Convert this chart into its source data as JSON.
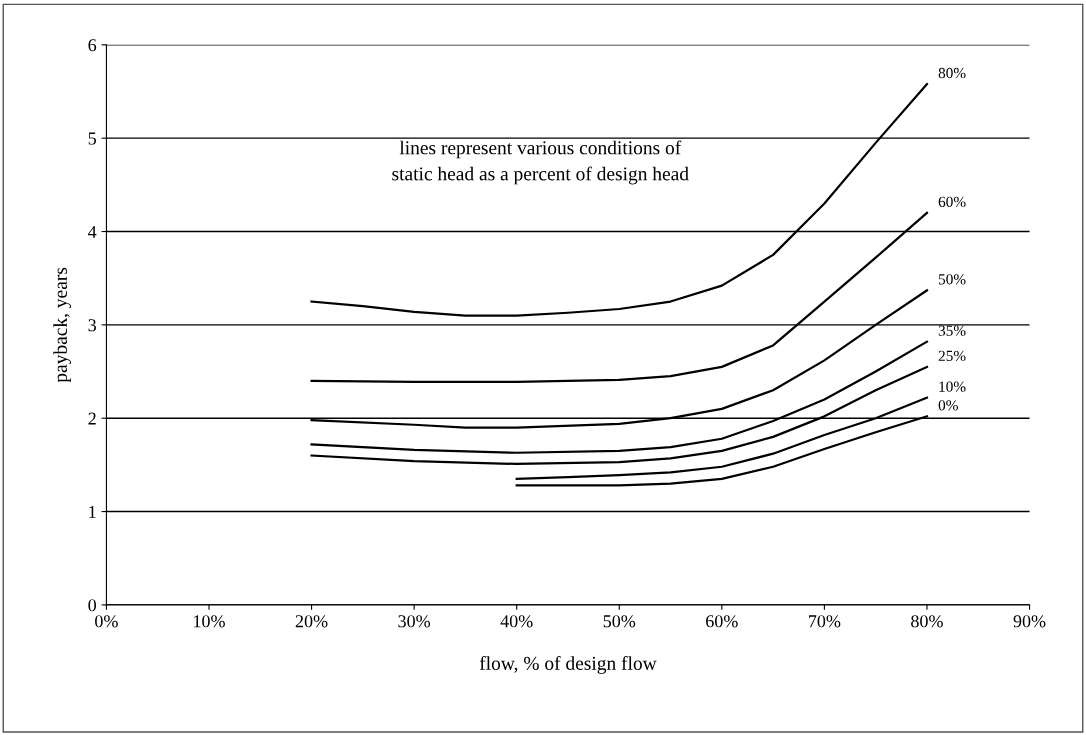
{
  "chart_data": {
    "type": "line",
    "xlabel": "flow, % of design flow",
    "ylabel": "payback, years",
    "annotations": [
      "lines represent various conditions of\nstatic head as a percent of design head"
    ],
    "xlim": [
      0,
      90
    ],
    "xticks": [
      {
        "value": 0,
        "label": "0%"
      },
      {
        "value": 10,
        "label": "10%"
      },
      {
        "value": 20,
        "label": "20%"
      },
      {
        "value": 30,
        "label": "30%"
      },
      {
        "value": 40,
        "label": "40%"
      },
      {
        "value": 50,
        "label": "50%"
      },
      {
        "value": 60,
        "label": "60%"
      },
      {
        "value": 70,
        "label": "70%"
      },
      {
        "value": 80,
        "label": "80%"
      },
      {
        "value": 90,
        "label": "90%"
      }
    ],
    "ylim": [
      0,
      6
    ],
    "yticks": [
      0,
      1,
      2,
      3,
      4,
      5,
      6
    ],
    "grid": "y",
    "legend": false,
    "marker": "none",
    "line_style": "solid",
    "series": [
      {
        "name": "80%",
        "color": "#000000",
        "x": [
          20,
          25,
          30,
          35,
          40,
          45,
          50,
          55,
          60,
          65,
          70,
          75,
          80
        ],
        "values": [
          3.25,
          3.2,
          3.14,
          3.1,
          3.1,
          3.13,
          3.17,
          3.25,
          3.42,
          3.75,
          4.3,
          4.95,
          5.58
        ]
      },
      {
        "name": "60%",
        "color": "#000000",
        "x": [
          20,
          30,
          40,
          50,
          55,
          60,
          65,
          70,
          75,
          80
        ],
        "values": [
          2.4,
          2.39,
          2.39,
          2.41,
          2.45,
          2.55,
          2.78,
          3.25,
          3.72,
          4.2
        ]
      },
      {
        "name": "50%",
        "color": "#000000",
        "x": [
          20,
          30,
          35,
          40,
          50,
          55,
          60,
          65,
          70,
          75,
          80
        ],
        "values": [
          1.98,
          1.93,
          1.9,
          1.9,
          1.94,
          2.0,
          2.1,
          2.3,
          2.62,
          3.0,
          3.37
        ]
      },
      {
        "name": "35%",
        "color": "#000000",
        "x": [
          20,
          30,
          40,
          50,
          55,
          60,
          65,
          70,
          75,
          80
        ],
        "values": [
          1.72,
          1.66,
          1.63,
          1.65,
          1.69,
          1.78,
          1.97,
          2.2,
          2.5,
          2.82
        ]
      },
      {
        "name": "25%",
        "color": "#000000",
        "x": [
          20,
          30,
          40,
          50,
          55,
          60,
          65,
          70,
          75,
          80
        ],
        "values": [
          1.6,
          1.54,
          1.51,
          1.53,
          1.57,
          1.65,
          1.8,
          2.02,
          2.3,
          2.55
        ]
      },
      {
        "name": "10%",
        "color": "#000000",
        "x": [
          40,
          45,
          50,
          55,
          60,
          65,
          70,
          75,
          80
        ],
        "values": [
          1.35,
          1.37,
          1.39,
          1.42,
          1.48,
          1.62,
          1.82,
          2.0,
          2.22
        ]
      },
      {
        "name": "0%",
        "color": "#000000",
        "x": [
          40,
          45,
          50,
          55,
          60,
          65,
          70,
          75,
          80
        ],
        "values": [
          1.28,
          1.28,
          1.28,
          1.3,
          1.35,
          1.48,
          1.67,
          1.85,
          2.02
        ]
      }
    ]
  }
}
